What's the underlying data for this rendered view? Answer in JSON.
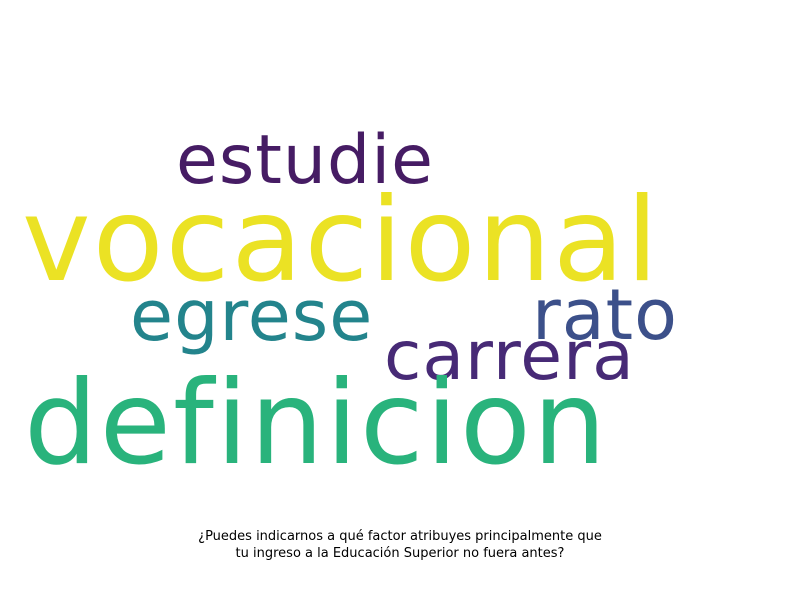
{
  "words": [
    {
      "key": "estudie",
      "text": "estudie",
      "color": "#461c64"
    },
    {
      "key": "vocacional",
      "text": "vocacional",
      "color": "#ebe224"
    },
    {
      "key": "egrese",
      "text": "egrese",
      "color": "#23848c"
    },
    {
      "key": "rato",
      "text": "rato",
      "color": "#3c508a"
    },
    {
      "key": "carrera",
      "text": "carrera",
      "color": "#472a76"
    },
    {
      "key": "definicion",
      "text": "definicion",
      "color": "#29b37c"
    }
  ],
  "caption": {
    "line1": "¿Puedes indicarnos a qué factor atribuyes principalmente que",
    "line2": "tu ingreso a la Educación Superior no fuera antes?"
  }
}
